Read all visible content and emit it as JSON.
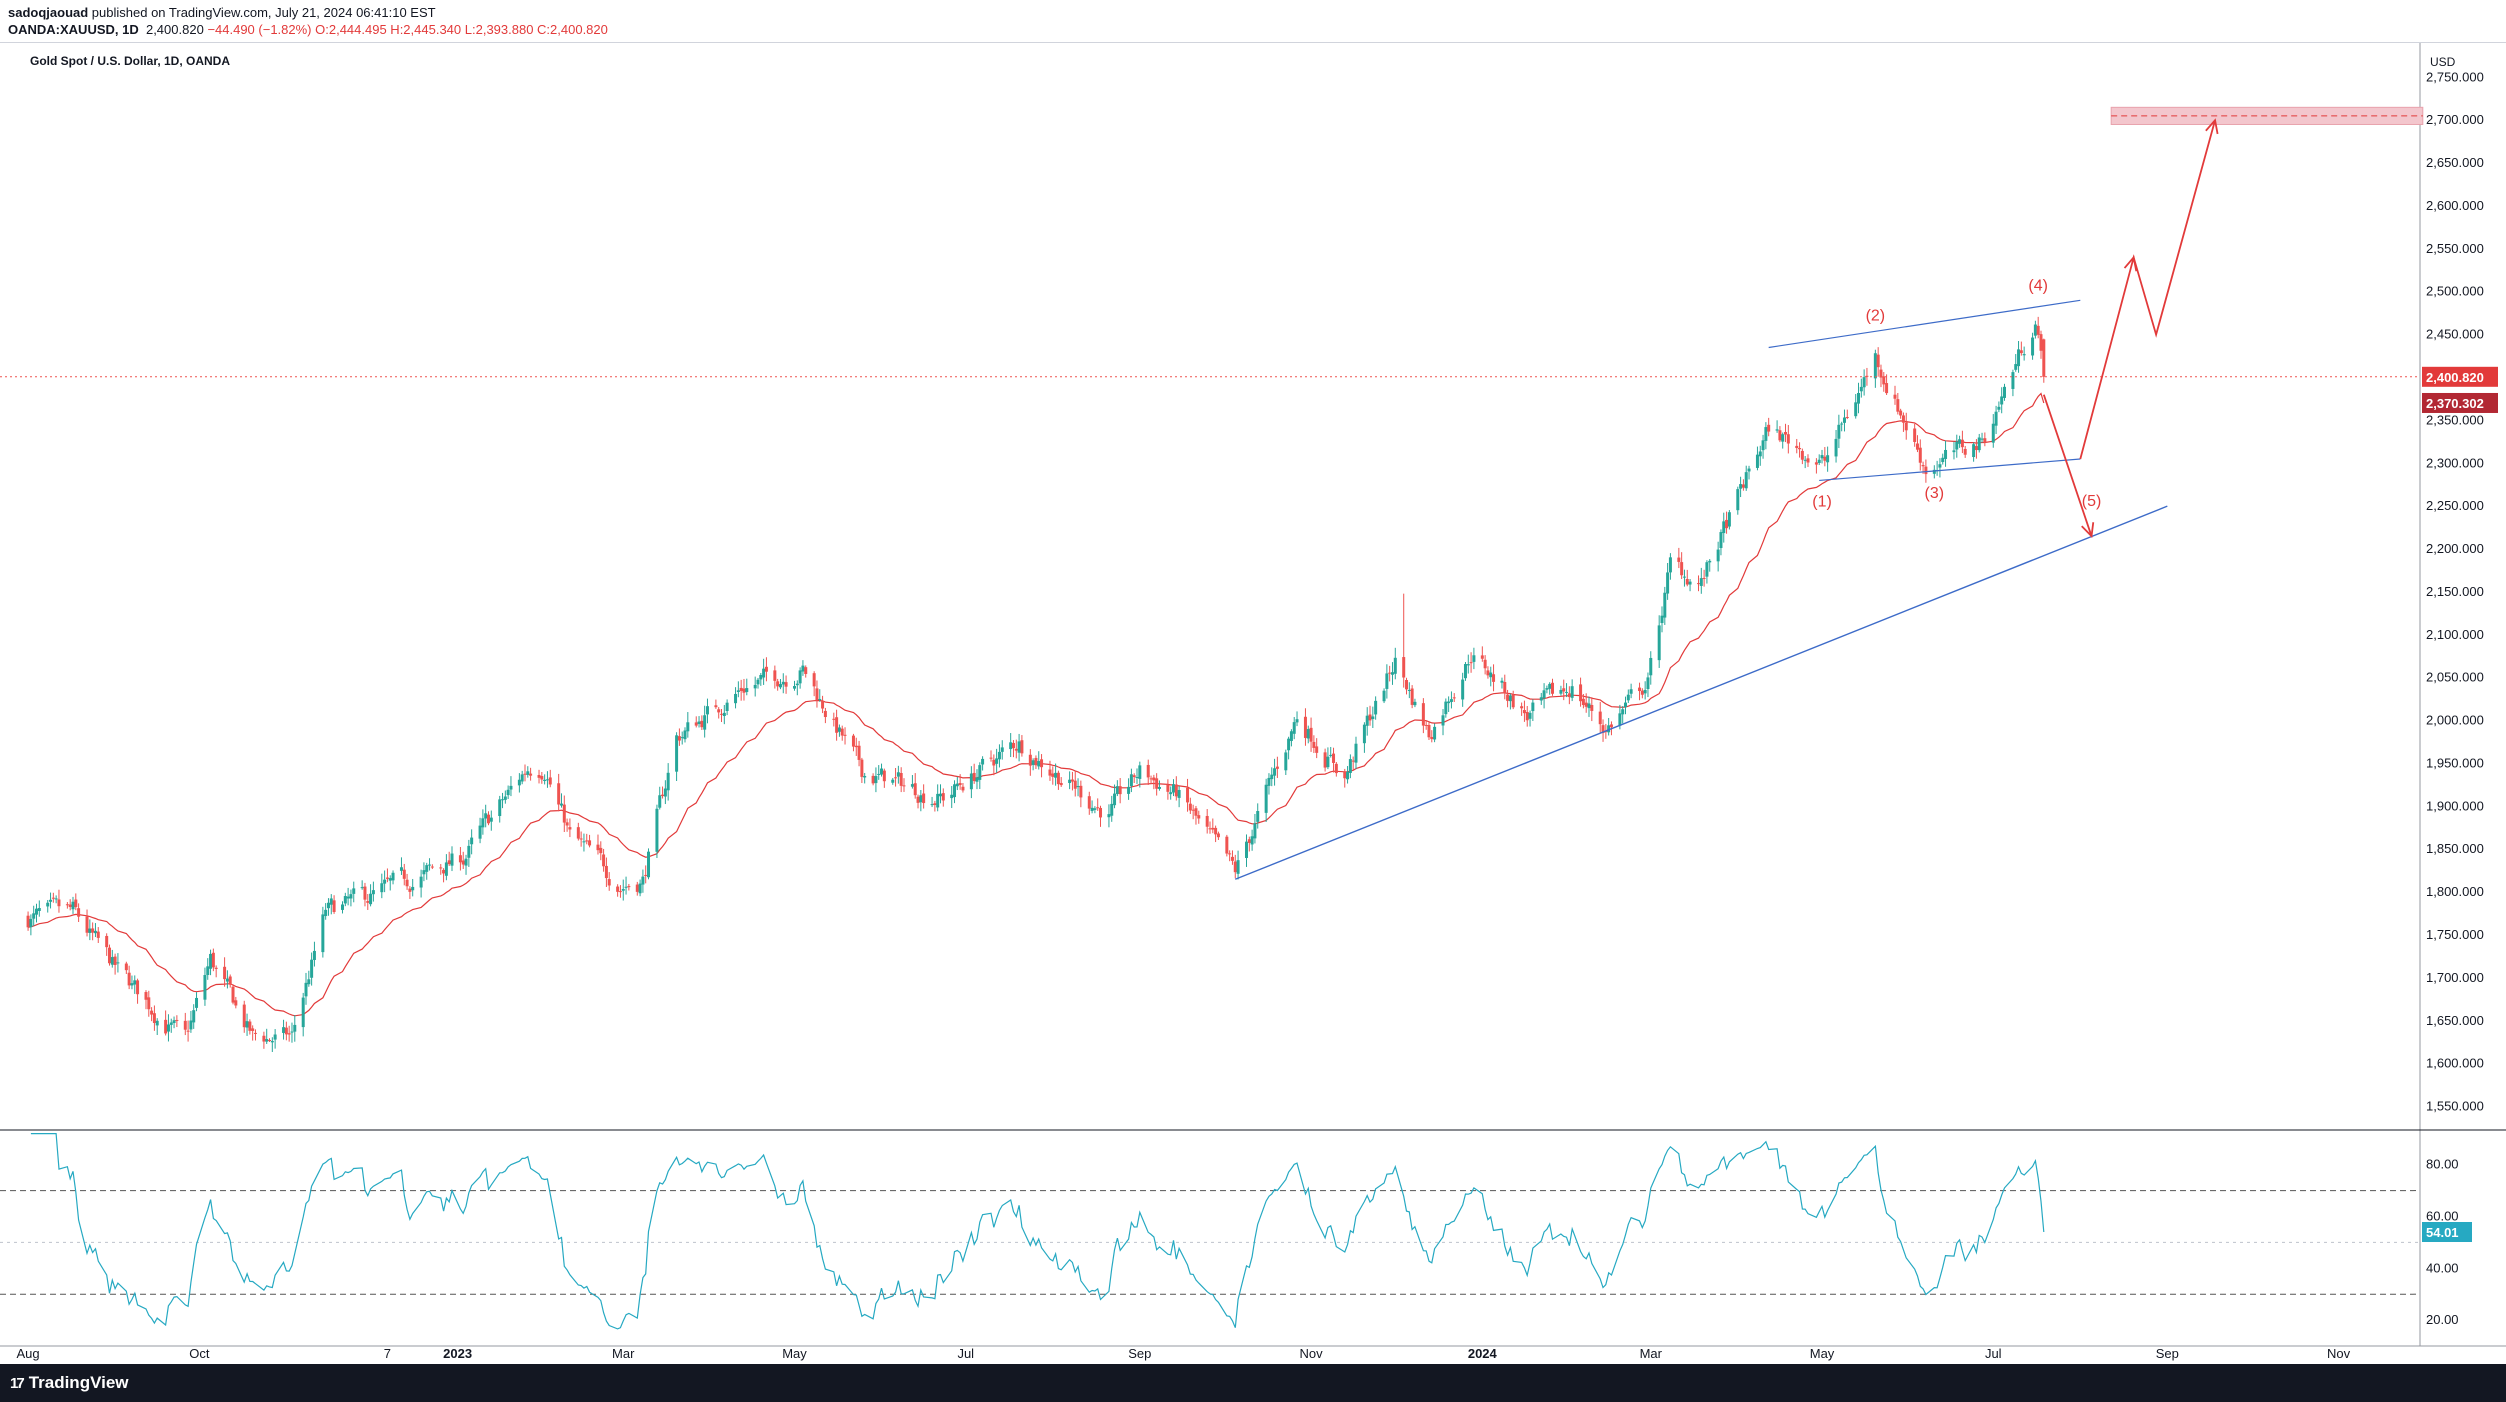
{
  "header": {
    "line1_prefix": "sadoqjaouad",
    "line1_rest": " published on TradingView.com, July 21, 2024 06:41:10 EST",
    "symbol": "OANDA:XAUUSD, 1D",
    "last": "2,400.820",
    "change": "−44.490 (−1.82%)",
    "ohlc": "O:2,444.495 H:2,445.340 L:2,393.880 C:2,400.820"
  },
  "legend_title": "Gold Spot / U.S. Dollar, 1D, OANDA",
  "price_axis": {
    "currency": "USD",
    "ticks": [
      "2,750.000",
      "2,700.000",
      "2,650.000",
      "2,600.000",
      "2,550.000",
      "2,500.000",
      "2,450.000",
      "2,400.000",
      "2,350.000",
      "2,300.000",
      "2,250.000",
      "2,200.000",
      "2,150.000",
      "2,100.000",
      "2,050.000",
      "2,000.000",
      "1,950.000",
      "1,900.000",
      "1,850.000",
      "1,800.000",
      "1,750.000",
      "1,700.000",
      "1,650.000",
      "1,600.000",
      "1,550.000"
    ],
    "last_price_label": "2,400.820",
    "ma_label": "2,370.302"
  },
  "rsi": {
    "ticks": [
      "80.00",
      "60.00",
      "40.00",
      "20.00"
    ],
    "value_label": "54.01",
    "upper_band": 70,
    "lower_band": 30,
    "mid_line": 50
  },
  "time_axis": {
    "labels": [
      "Aug",
      "Oct",
      "7",
      "2023",
      "Mar",
      "May",
      "Jul",
      "Sep",
      "Nov",
      "2024",
      "Mar",
      "May",
      "Jul",
      "Sep",
      "Nov"
    ]
  },
  "annotations": {
    "wave_labels": [
      "(1)",
      "(2)",
      "(3)",
      "(4)",
      "(5)"
    ]
  },
  "footer": {
    "brand": "TradingView"
  },
  "colors": {
    "up": "#26a69a",
    "down": "#ef5350",
    "ma": "#e23a3a",
    "rsi": "#26a9c2",
    "trendline": "#3d6bc8",
    "projection": "#e23a3a",
    "target_zone": "#f3c6cd",
    "axis_text": "#131722"
  },
  "chart_data": {
    "type": "candlestick",
    "title": "Gold Spot / U.S. Dollar, 1D, OANDA",
    "x_range": [
      "2022-08",
      "2024-07-19"
    ],
    "ylim": [
      1525,
      2790
    ],
    "close_anchors": [
      {
        "date": "2022-08-01",
        "close": 1770
      },
      {
        "date": "2022-08-17",
        "close": 1775
      },
      {
        "date": "2022-09-01",
        "close": 1710
      },
      {
        "date": "2022-09-26",
        "close": 1625
      },
      {
        "date": "2022-10-05",
        "close": 1720
      },
      {
        "date": "2022-10-20",
        "close": 1630
      },
      {
        "date": "2022-11-03",
        "close": 1630
      },
      {
        "date": "2022-11-15",
        "close": 1775
      },
      {
        "date": "2022-12-13",
        "close": 1810
      },
      {
        "date": "2023-01-03",
        "close": 1840
      },
      {
        "date": "2023-01-26",
        "close": 1945
      },
      {
        "date": "2023-02-01",
        "close": 1950
      },
      {
        "date": "2023-02-10",
        "close": 1865
      },
      {
        "date": "2023-02-28",
        "close": 1810
      },
      {
        "date": "2023-03-08",
        "close": 1815
      },
      {
        "date": "2023-03-20",
        "close": 1980
      },
      {
        "date": "2023-04-13",
        "close": 2040
      },
      {
        "date": "2023-05-04",
        "close": 2060
      },
      {
        "date": "2023-05-25",
        "close": 1940
      },
      {
        "date": "2023-06-23",
        "close": 1910
      },
      {
        "date": "2023-07-20",
        "close": 1975
      },
      {
        "date": "2023-08-21",
        "close": 1890
      },
      {
        "date": "2023-09-01",
        "close": 1940
      },
      {
        "date": "2023-09-14",
        "close": 1915
      },
      {
        "date": "2023-10-05",
        "close": 1820
      },
      {
        "date": "2023-10-27",
        "close": 2005
      },
      {
        "date": "2023-11-13",
        "close": 1935
      },
      {
        "date": "2023-12-01",
        "close": 2070
      },
      {
        "date": "2023-12-13",
        "close": 1985
      },
      {
        "date": "2023-12-28",
        "close": 2080
      },
      {
        "date": "2024-01-17",
        "close": 2005
      },
      {
        "date": "2024-02-02",
        "close": 2040
      },
      {
        "date": "2024-02-14",
        "close": 1990
      },
      {
        "date": "2024-02-29",
        "close": 2045
      },
      {
        "date": "2024-03-08",
        "close": 2180
      },
      {
        "date": "2024-03-19",
        "close": 2160
      },
      {
        "date": "2024-04-12",
        "close": 2340
      },
      {
        "date": "2024-05-02",
        "close": 2300
      },
      {
        "date": "2024-05-20",
        "close": 2425
      },
      {
        "date": "2024-06-07",
        "close": 2295
      },
      {
        "date": "2024-06-27",
        "close": 2325
      },
      {
        "date": "2024-07-16",
        "close": 2470
      },
      {
        "date": "2024-07-19",
        "close": 2400.82
      }
    ],
    "last_close": 2400.82,
    "moving_average_last": 2370.302,
    "target_zone": [
      2695,
      2715
    ],
    "target_level": 2705,
    "trendline_support": [
      {
        "date": "2023-10-05",
        "price": 1815
      },
      {
        "date": "2024-09-01",
        "price": 2250
      }
    ],
    "wedge_upper": [
      {
        "date": "2024-04-12",
        "price": 2435
      },
      {
        "date": "2024-08-01",
        "price": 2490
      }
    ],
    "wedge_lower": [
      {
        "date": "2024-04-30",
        "price": 2280
      },
      {
        "date": "2024-08-01",
        "price": 2305
      }
    ],
    "projection_path": [
      {
        "date": "2024-07-19",
        "price": 2380
      },
      {
        "date": "2024-08-05",
        "price": 2215
      },
      {
        "date": "2024-08-01",
        "price": 2305
      },
      {
        "date": "2024-08-20",
        "price": 2540
      },
      {
        "date": "2024-08-28",
        "price": 2450
      },
      {
        "date": "2024-09-18",
        "price": 2700
      }
    ],
    "wave_points": [
      {
        "label": "(1)",
        "date": "2024-05-01",
        "price": 2275
      },
      {
        "label": "(2)",
        "date": "2024-05-20",
        "price": 2450
      },
      {
        "label": "(3)",
        "date": "2024-06-10",
        "price": 2285
      },
      {
        "label": "(4)",
        "date": "2024-07-17",
        "price": 2485
      },
      {
        "label": "(5)",
        "date": "2024-08-05",
        "price": 2215
      }
    ],
    "rsi_indicator": {
      "last": 54.01,
      "ylim": [
        10,
        93
      ],
      "bands": [
        30,
        50,
        70
      ]
    }
  }
}
